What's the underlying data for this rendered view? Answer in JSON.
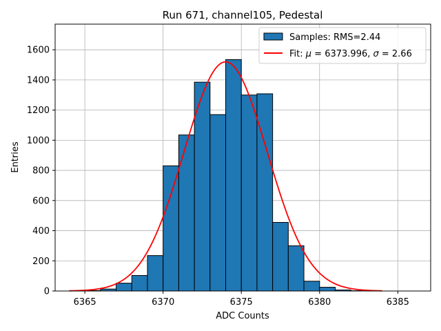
{
  "chart_data": {
    "type": "bar",
    "title": "Run 671, channel105, Pedestal",
    "xlabel": "ADC Counts",
    "ylabel": "Entries",
    "xlim": [
      6363.1,
      6387.1
    ],
    "ylim": [
      0,
      1770
    ],
    "xticks": [
      6365,
      6370,
      6375,
      6380,
      6385
    ],
    "yticks": [
      0,
      200,
      400,
      600,
      800,
      1000,
      1200,
      1400,
      1600
    ],
    "grid": true,
    "legend_position": "top-right",
    "colors": {
      "bar_fill": "#1f77b4",
      "bar_edge": "#000000",
      "fit_line": "#ff0000",
      "grid": "#b0b0b0"
    },
    "histogram": {
      "name": "Samples: RMS=2.44",
      "bin_width": 1,
      "bins": [
        {
          "left": 6365,
          "count": 3
        },
        {
          "left": 6366,
          "count": 13
        },
        {
          "left": 6367,
          "count": 52
        },
        {
          "left": 6368,
          "count": 103
        },
        {
          "left": 6369,
          "count": 235
        },
        {
          "left": 6370,
          "count": 830
        },
        {
          "left": 6371,
          "count": 1035
        },
        {
          "left": 6372,
          "count": 1385
        },
        {
          "left": 6373,
          "count": 1170
        },
        {
          "left": 6374,
          "count": 1535
        },
        {
          "left": 6375,
          "count": 1300
        },
        {
          "left": 6376,
          "count": 1308
        },
        {
          "left": 6377,
          "count": 455
        },
        {
          "left": 6378,
          "count": 300
        },
        {
          "left": 6379,
          "count": 65
        },
        {
          "left": 6380,
          "count": 25
        },
        {
          "left": 6381,
          "count": 7
        },
        {
          "left": 6382,
          "count": 2
        }
      ]
    },
    "fit": {
      "name_prefix": "Fit: ",
      "mu_symbol": "μ",
      "mu_text": " = 6373.996, ",
      "sigma_symbol": "σ",
      "sigma_text": " = 2.66",
      "mu": 6373.996,
      "sigma": 2.66,
      "amplitude": 1520,
      "x_range": [
        6364,
        6384
      ]
    }
  }
}
